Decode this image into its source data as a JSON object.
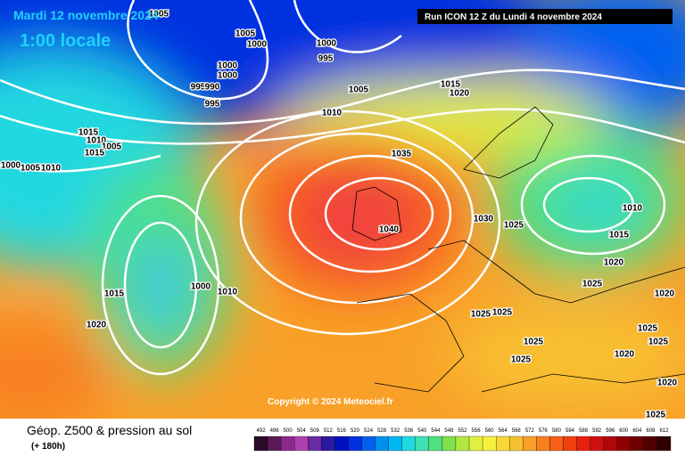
{
  "header": {
    "date": "Mardi 12 novembre 2024",
    "time": "1:00 locale",
    "run": "Run ICON 12 Z du Lundi 4 novembre 2024"
  },
  "copyright": "Copyright © 2024 Meteociel.fr",
  "footer": {
    "title": "Géop. Z500 & pression au sol",
    "step": "(+ 180h)"
  },
  "isobar_labels": [
    "1005",
    "1005",
    "1000",
    "1000",
    "995",
    "1000",
    "1000",
    "995",
    "990",
    "995",
    "1005",
    "1015",
    "1020",
    "1010",
    "1015",
    "1010",
    "1005",
    "1015",
    "1000",
    "1005",
    "1010",
    "1035",
    "1040",
    "1030",
    "1025",
    "1010",
    "1015",
    "1020",
    "1025",
    "1020",
    "1015",
    "1000",
    "1010",
    "1020",
    "1025",
    "1025",
    "1025",
    "1025",
    "1025",
    "1025",
    "1020",
    "1020",
    "1025"
  ],
  "colorbar": {
    "labels": [
      "492",
      "496",
      "500",
      "504",
      "508",
      "512",
      "516",
      "520",
      "524",
      "528",
      "532",
      "536",
      "540",
      "544",
      "548",
      "552",
      "556",
      "560",
      "564",
      "568",
      "572",
      "576",
      "580",
      "584",
      "588",
      "592",
      "596",
      "600",
      "604",
      "608",
      "612"
    ],
    "colors": [
      "#2a0a2a",
      "#5a1a5a",
      "#8a2a8a",
      "#b040b0",
      "#6a2aa0",
      "#2a1aa0",
      "#0010c0",
      "#0030e0",
      "#0060f0",
      "#0090f0",
      "#00b8f0",
      "#20d8e0",
      "#40e0b0",
      "#50e080",
      "#80e050",
      "#b0e840",
      "#e0f040",
      "#f8f040",
      "#f8d838",
      "#f8c030",
      "#f8a028",
      "#f88020",
      "#f86018",
      "#f04010",
      "#e82010",
      "#d01010",
      "#b00808",
      "#900000",
      "#700000",
      "#500000",
      "#300000"
    ]
  }
}
